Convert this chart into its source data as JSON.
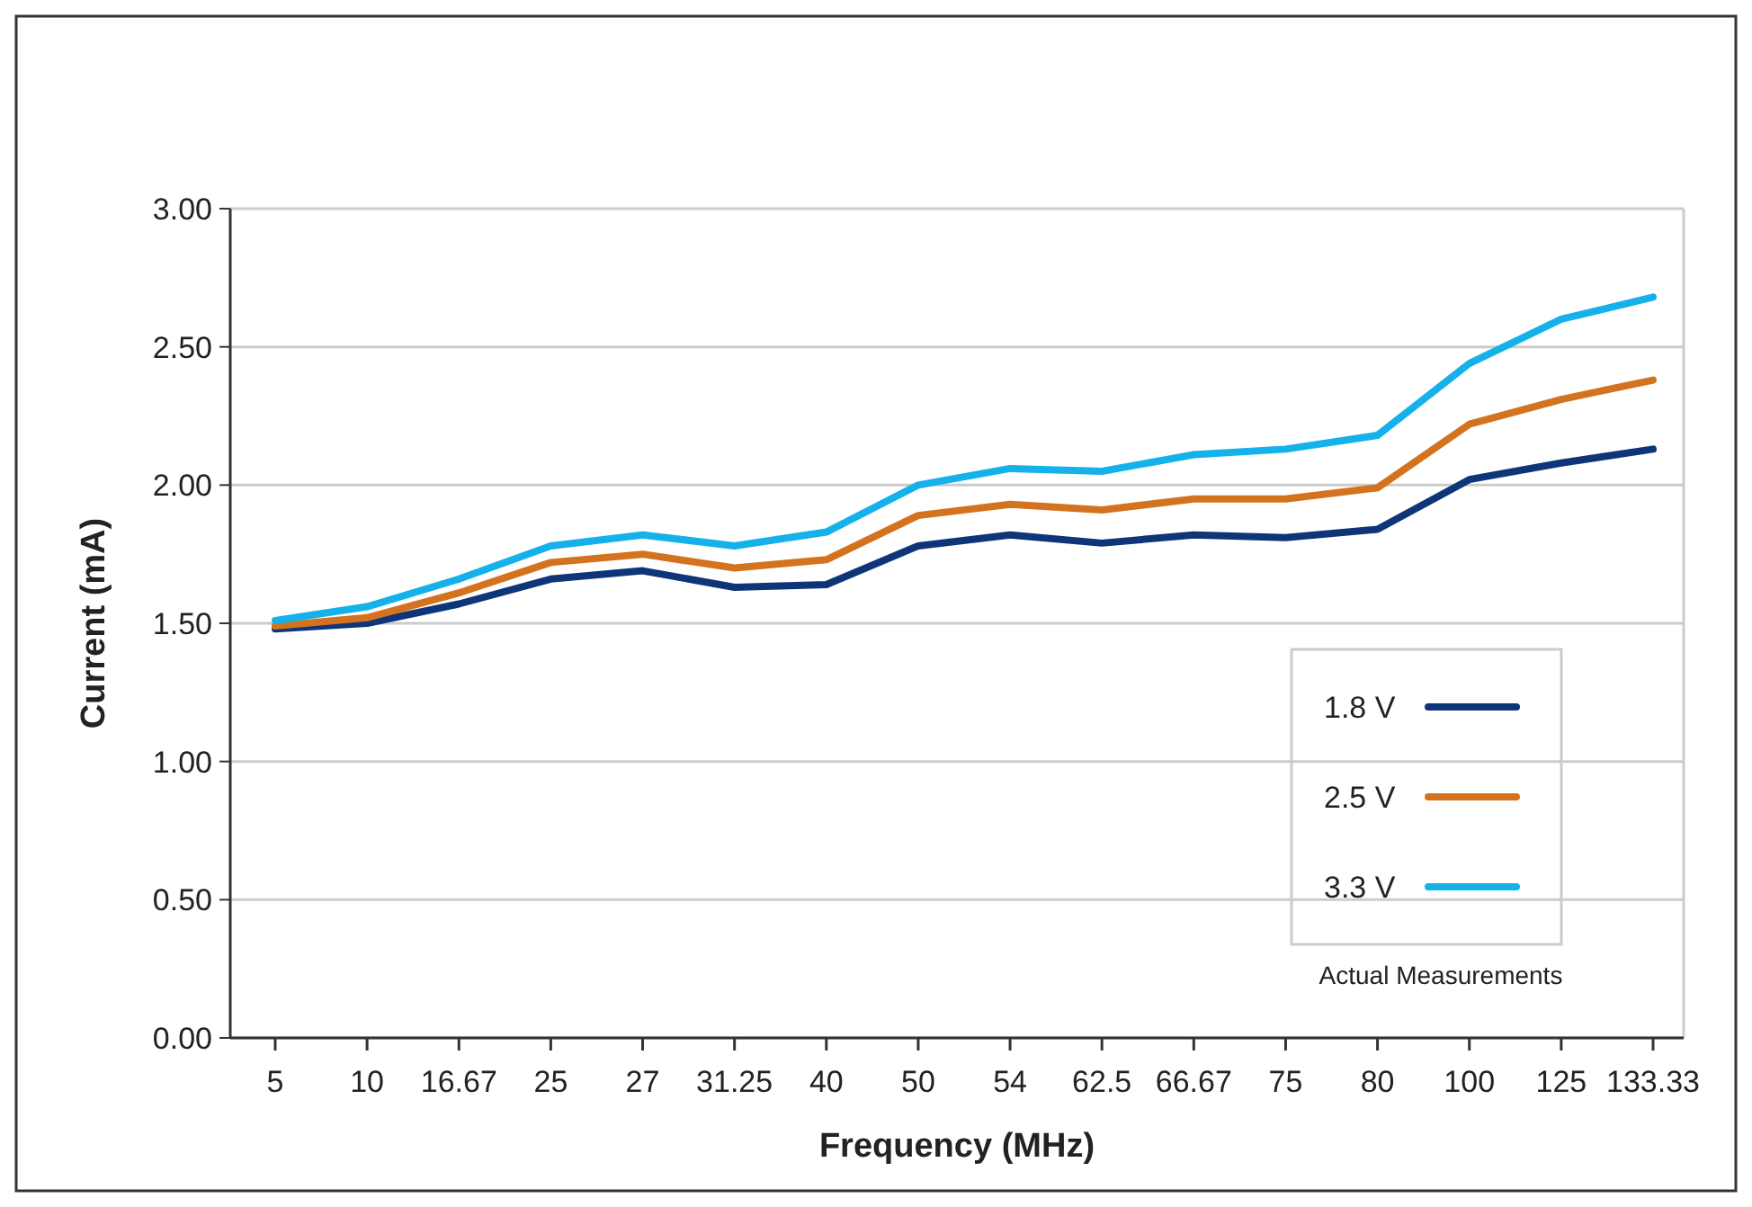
{
  "chart_data": {
    "type": "line",
    "xlabel": "Frequency (MHz)",
    "ylabel": "Current (mA)",
    "categories": [
      "5",
      "10",
      "16.67",
      "25",
      "27",
      "31.25",
      "40",
      "50",
      "54",
      "62.5",
      "66.67",
      "75",
      "80",
      "100",
      "125",
      "133.33"
    ],
    "series": [
      {
        "name": "1.8 V",
        "color": "#0d3578",
        "values": [
          1.48,
          1.5,
          1.57,
          1.66,
          1.69,
          1.63,
          1.64,
          1.78,
          1.82,
          1.79,
          1.82,
          1.81,
          1.84,
          2.02,
          2.08,
          2.13
        ]
      },
      {
        "name": "2.5 V",
        "color": "#d4731f",
        "values": [
          1.49,
          1.52,
          1.61,
          1.72,
          1.75,
          1.7,
          1.73,
          1.89,
          1.93,
          1.91,
          1.95,
          1.95,
          1.99,
          2.22,
          2.31,
          2.38
        ]
      },
      {
        "name": "3.3 V",
        "color": "#14b1ea",
        "values": [
          1.51,
          1.56,
          1.66,
          1.78,
          1.82,
          1.78,
          1.83,
          2.0,
          2.06,
          2.05,
          2.11,
          2.13,
          2.18,
          2.44,
          2.6,
          2.68
        ]
      }
    ],
    "ylim": [
      0,
      3
    ],
    "yticks": [
      {
        "value": 0,
        "label": "0.00"
      },
      {
        "value": 0.5,
        "label": "0.50"
      },
      {
        "value": 1,
        "label": "1.00"
      },
      {
        "value": 1.5,
        "label": "1.50"
      },
      {
        "value": 2,
        "label": "2.00"
      },
      {
        "value": 2.5,
        "label": "2.50"
      },
      {
        "value": 3,
        "label": "3.00"
      }
    ],
    "grid": "y",
    "legend": "bottom right",
    "marker": "none",
    "line_style": "solid",
    "annotations": [
      "Actual Measurements"
    ]
  }
}
